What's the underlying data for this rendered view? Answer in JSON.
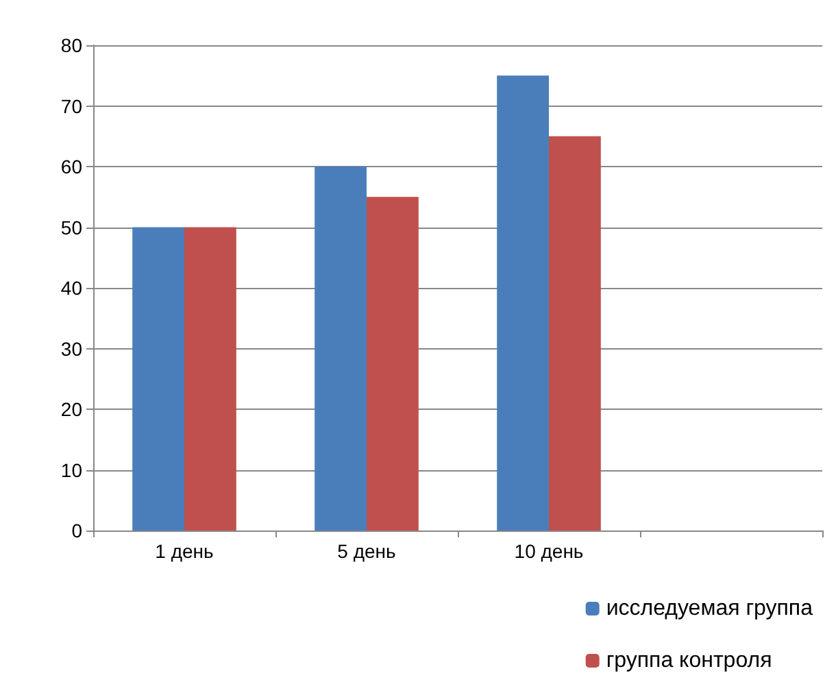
{
  "chart_data": {
    "type": "bar",
    "categories": [
      "1 день",
      "5 день",
      "10 день",
      null
    ],
    "series": [
      {
        "name": "исследуемая группа",
        "color": "#4a7ebb",
        "values": [
          50,
          60,
          75,
          null
        ]
      },
      {
        "name": "группа контроля",
        "color": "#c0504d",
        "values": [
          50,
          55,
          65,
          null
        ]
      }
    ],
    "ylim": [
      0,
      80
    ],
    "yticks": [
      0,
      10,
      20,
      30,
      40,
      50,
      60,
      70,
      80
    ],
    "grid": "y",
    "legend": "bottom right"
  }
}
